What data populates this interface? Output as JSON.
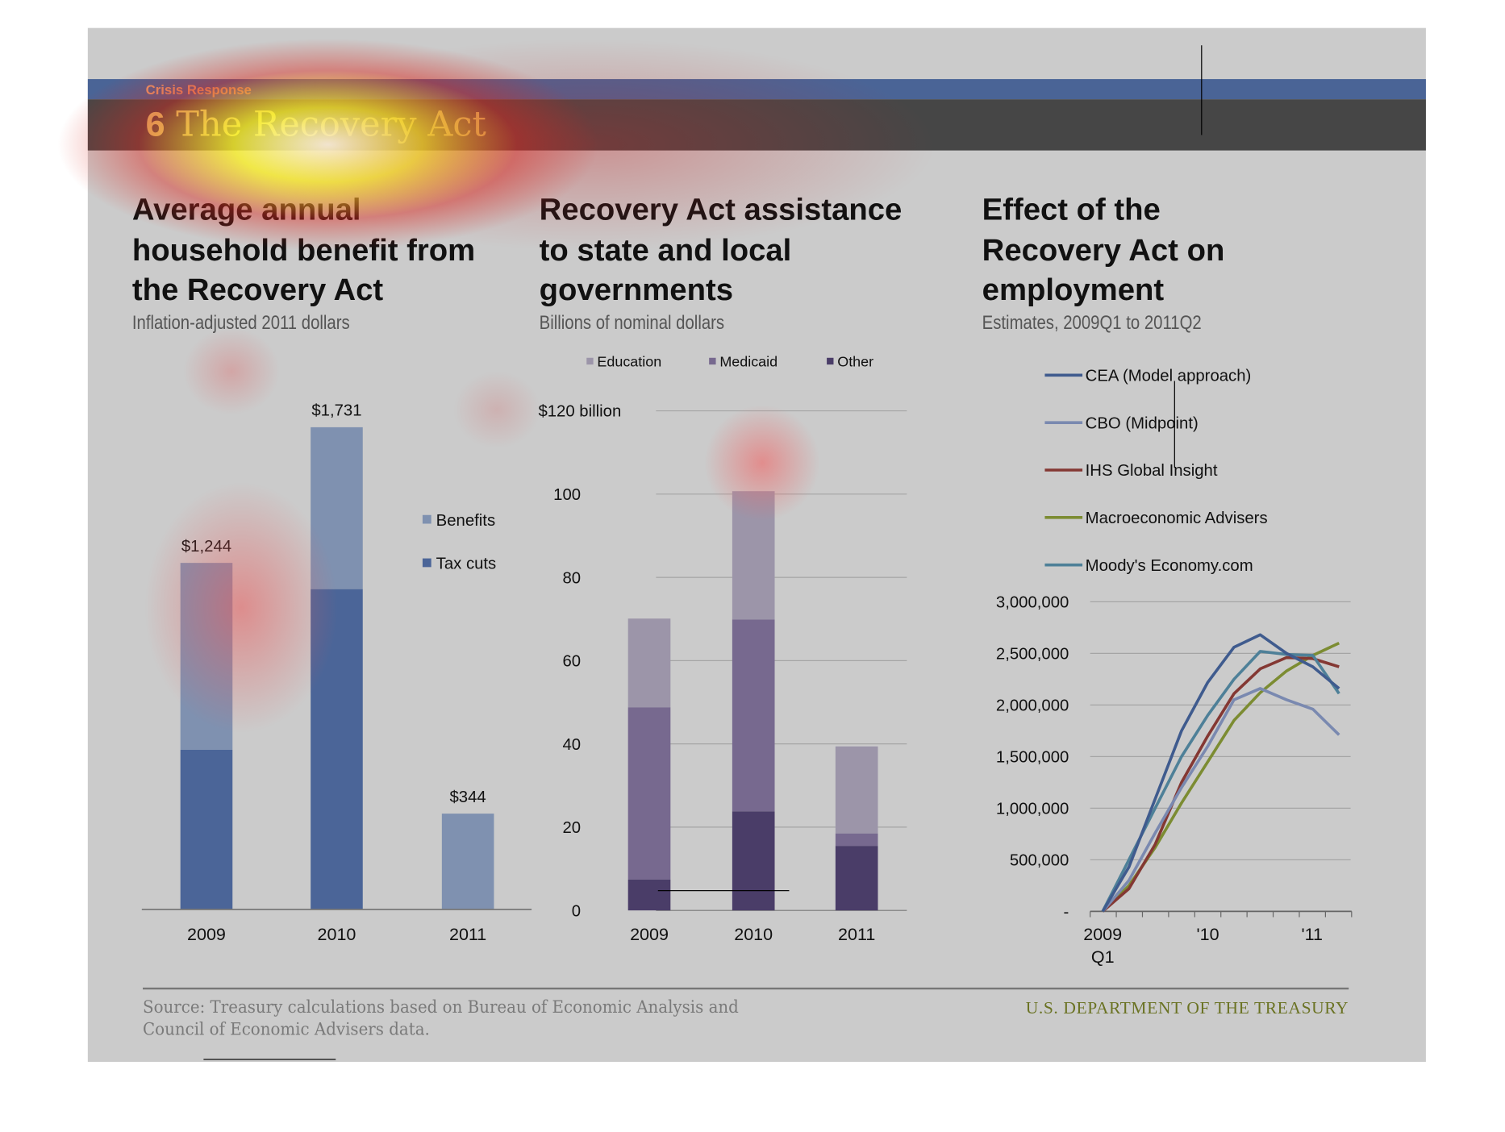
{
  "header": {
    "section": "Crisis Response",
    "chapter_number": "6",
    "chapter_title": "The Recovery Act"
  },
  "footer": {
    "source": "Source: Treasury calculations based on Bureau of Economic Analysis and Council of Economic Advisers data.",
    "publisher": "U.S. DEPARTMENT OF THE TREASURY"
  },
  "chart_data": [
    {
      "type": "bar",
      "stacked": true,
      "title": "Average annual household benefit from the Recovery Act",
      "subtitle": "Inflation-adjusted 2011 dollars",
      "categories": [
        "2009",
        "2010",
        "2011"
      ],
      "series": [
        {
          "name": "Tax cuts",
          "values": [
            573,
            1150,
            0
          ],
          "color": "#4b6598"
        },
        {
          "name": "Benefits",
          "values": [
            671,
            581,
            344
          ],
          "color": "#7f91b0"
        }
      ],
      "totals": [
        1244,
        1731,
        344
      ],
      "data_labels": [
        "$1,244",
        "$1,731",
        "$344"
      ],
      "legend": [
        "Benefits",
        "Tax cuts"
      ],
      "legend_placement": "right",
      "ylim": [
        0,
        1731
      ]
    },
    {
      "type": "bar",
      "stacked": true,
      "title": "Recovery Act assistance to state and local governments",
      "subtitle": "Billions of nominal dollars",
      "categories": [
        "2009",
        "2010",
        "2011"
      ],
      "series": [
        {
          "name": "Other",
          "values": [
            7.4,
            23.8,
            15.5
          ],
          "color": "#4a3d68"
        },
        {
          "name": "Medicaid",
          "values": [
            41.4,
            46.1,
            3.0
          ],
          "color": "#77698f"
        },
        {
          "name": "Education",
          "values": [
            21.3,
            30.8,
            20.9
          ],
          "color": "#9c95a9"
        }
      ],
      "legend": [
        "Education",
        "Medicaid",
        "Other"
      ],
      "legend_placement": "top",
      "yticks": [
        "0",
        "20",
        "40",
        "60",
        "80",
        "100",
        "$120 billion"
      ],
      "ylim": [
        0,
        120
      ],
      "grid": true
    },
    {
      "type": "line",
      "title": "Effect of the Recovery Act on employment",
      "subtitle": "Estimates, 2009Q1 to 2011Q2",
      "x": [
        "2009Q1",
        "2009Q2",
        "2009Q3",
        "2009Q4",
        "2010Q1",
        "2010Q2",
        "2010Q3",
        "2010Q4",
        "2011Q1",
        "2011Q2"
      ],
      "xtick_labels": [
        "2009",
        "Q1",
        "'10",
        "'11"
      ],
      "series": [
        {
          "name": "CEA (Model approach)",
          "color": "#3f5b8e",
          "values": [
            0,
            430000,
            1090000,
            1750000,
            2220000,
            2560000,
            2680000,
            2500000,
            2370000,
            2160000
          ]
        },
        {
          "name": "CBO (Midpoint)",
          "color": "#7a89b0",
          "values": [
            0,
            300000,
            760000,
            1200000,
            1600000,
            2050000,
            2160000,
            2050000,
            1960000,
            1710000
          ]
        },
        {
          "name": "IHS Global Insight",
          "color": "#843833",
          "values": [
            0,
            220000,
            650000,
            1250000,
            1700000,
            2110000,
            2350000,
            2460000,
            2450000,
            2370000
          ]
        },
        {
          "name": "Macroeconomic Advisers",
          "color": "#7c8c32",
          "values": [
            0,
            250000,
            620000,
            1050000,
            1450000,
            1850000,
            2120000,
            2330000,
            2480000,
            2600000
          ]
        },
        {
          "name": "Moody's Economy.com",
          "color": "#4e8098",
          "values": [
            0,
            500000,
            1000000,
            1500000,
            1900000,
            2250000,
            2520000,
            2490000,
            2480000,
            2110000
          ]
        }
      ],
      "yticks": [
        "-",
        "500,000",
        "1,000,000",
        "1,500,000",
        "2,000,000",
        "2,500,000",
        "3,000,000"
      ],
      "ylim": [
        0,
        3000000
      ],
      "legend_placement": "top",
      "grid": true
    }
  ]
}
